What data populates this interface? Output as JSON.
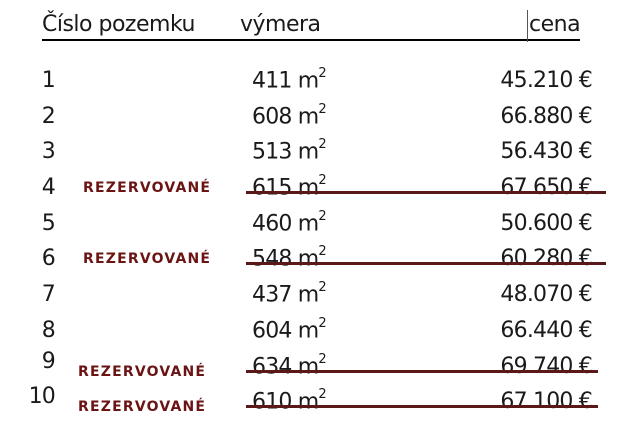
{
  "header": {
    "number": "Číslo pozemku",
    "area": "výmera",
    "price": "cena"
  },
  "reserved_label": "REZERVOVANÉ",
  "accent_color": "#6b1414",
  "rows": [
    {
      "number": "1",
      "area": "411 m",
      "unit_sup": "2",
      "price": "45.210 €",
      "reserved": false
    },
    {
      "number": "2",
      "area": "608 m",
      "unit_sup": "2",
      "price": "66.880 €",
      "reserved": false
    },
    {
      "number": "3",
      "area": "513 m",
      "unit_sup": "2",
      "price": "56.430 €",
      "reserved": false
    },
    {
      "number": "4",
      "area": "615 m",
      "unit_sup": "2",
      "price": "67.650 €",
      "reserved": true
    },
    {
      "number": "5",
      "area": "460 m",
      "unit_sup": "2",
      "price": "50.600 €",
      "reserved": false
    },
    {
      "number": "6",
      "area": "548 m",
      "unit_sup": "2",
      "price": "60.280 €",
      "reserved": true
    },
    {
      "number": "7",
      "area": "437 m",
      "unit_sup": "2",
      "price": "48.070 €",
      "reserved": false
    },
    {
      "number": "8",
      "area": "604 m",
      "unit_sup": "2",
      "price": "66.440 €",
      "reserved": false
    },
    {
      "number": "9",
      "area": "634 m",
      "unit_sup": "2",
      "price": "69.740 €",
      "reserved": true
    },
    {
      "number": "10",
      "area": "610 m",
      "unit_sup": "2",
      "price": "67.100 €",
      "reserved": true
    }
  ]
}
